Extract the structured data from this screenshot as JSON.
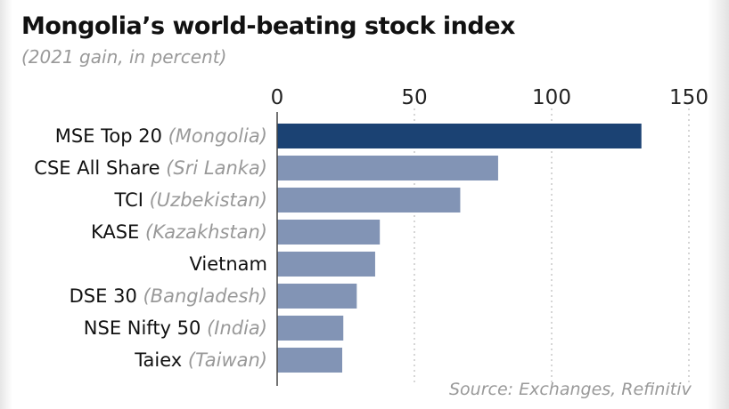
{
  "chart_data": {
    "type": "bar",
    "orientation": "horizontal",
    "title": "Mongolia’s world-beating stock index",
    "subtitle": "(2021 gain, in percent)",
    "source": "Source: Exchanges, Refinitiv",
    "categories": [
      {
        "name": "MSE Top 20",
        "country": "(Mongolia)"
      },
      {
        "name": "CSE All Share",
        "country": "(Sri Lanka)"
      },
      {
        "name": "TCI",
        "country": "(Uzbekistan)"
      },
      {
        "name": "KASE",
        "country": "(Kazakhstan)"
      },
      {
        "name": "Vietnam",
        "country": ""
      },
      {
        "name": "DSE 30",
        "country": "(Bangladesh)"
      },
      {
        "name": "NSE Nifty 50",
        "country": "(India)"
      },
      {
        "name": "Taiex",
        "country": "(Taiwan)"
      }
    ],
    "values": [
      132.7,
      80.5,
      66.7,
      37.4,
      35.7,
      29.0,
      24.1,
      23.7
    ],
    "xlim": [
      0,
      150
    ],
    "xticks": [
      "0",
      "50",
      "100",
      "150"
    ],
    "grid": true,
    "colors": {
      "highlight": "#1b4273",
      "default": "#8294b5",
      "grid": "#bbbbbb"
    }
  }
}
